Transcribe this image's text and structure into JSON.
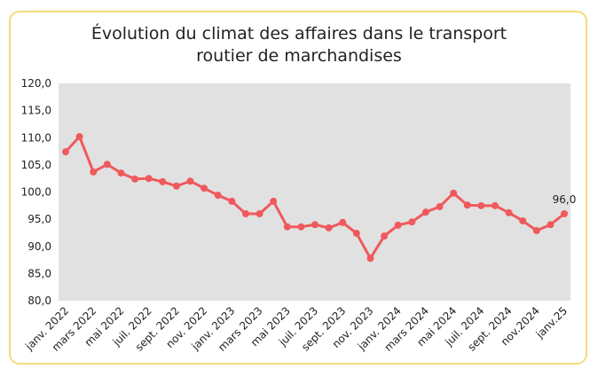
{
  "chart_data": {
    "type": "line",
    "title_lines": [
      "Évolution du climat des affaires dans le transport",
      "routier de marchandises"
    ],
    "xlabel": "",
    "ylabel": "",
    "ylim": [
      80,
      120
    ],
    "y_ticks": [
      "80,0",
      "85,0",
      "90,0",
      "95,0",
      "100,0",
      "105,0",
      "110,0",
      "115,0",
      "120,0"
    ],
    "x_tick_labels": [
      "janv. 2022",
      "mars 2022",
      "mai 2022",
      "juil. 2022",
      "sept. 2022",
      "nov. 2022",
      "janv. 2023",
      "mars 2023",
      "mai 2023",
      "juil. 2023",
      "sept. 2023",
      "nov. 2023",
      "janv. 2024",
      "mars 2024",
      "mai 2024",
      "juil. 2024",
      "sept. 2024",
      "nov.2024",
      "janv.25"
    ],
    "values": [
      107.4,
      110.2,
      103.7,
      105.1,
      103.5,
      102.4,
      102.5,
      101.9,
      101.1,
      102.0,
      100.7,
      99.4,
      98.3,
      96.0,
      96.0,
      98.3,
      93.6,
      93.6,
      94.0,
      93.4,
      94.4,
      92.4,
      87.8,
      91.9,
      93.9,
      94.5,
      96.3,
      97.3,
      99.8,
      97.6,
      97.5,
      97.5,
      96.2,
      94.7,
      92.9,
      94.0,
      96.0
    ],
    "data_labels": [
      {
        "index": 36,
        "text": "96,0"
      }
    ],
    "grid": false,
    "legend": "none",
    "colors": {
      "line": "#f0595c",
      "plot_background": "#e1e1e1",
      "border": "#f3dc7a"
    }
  }
}
